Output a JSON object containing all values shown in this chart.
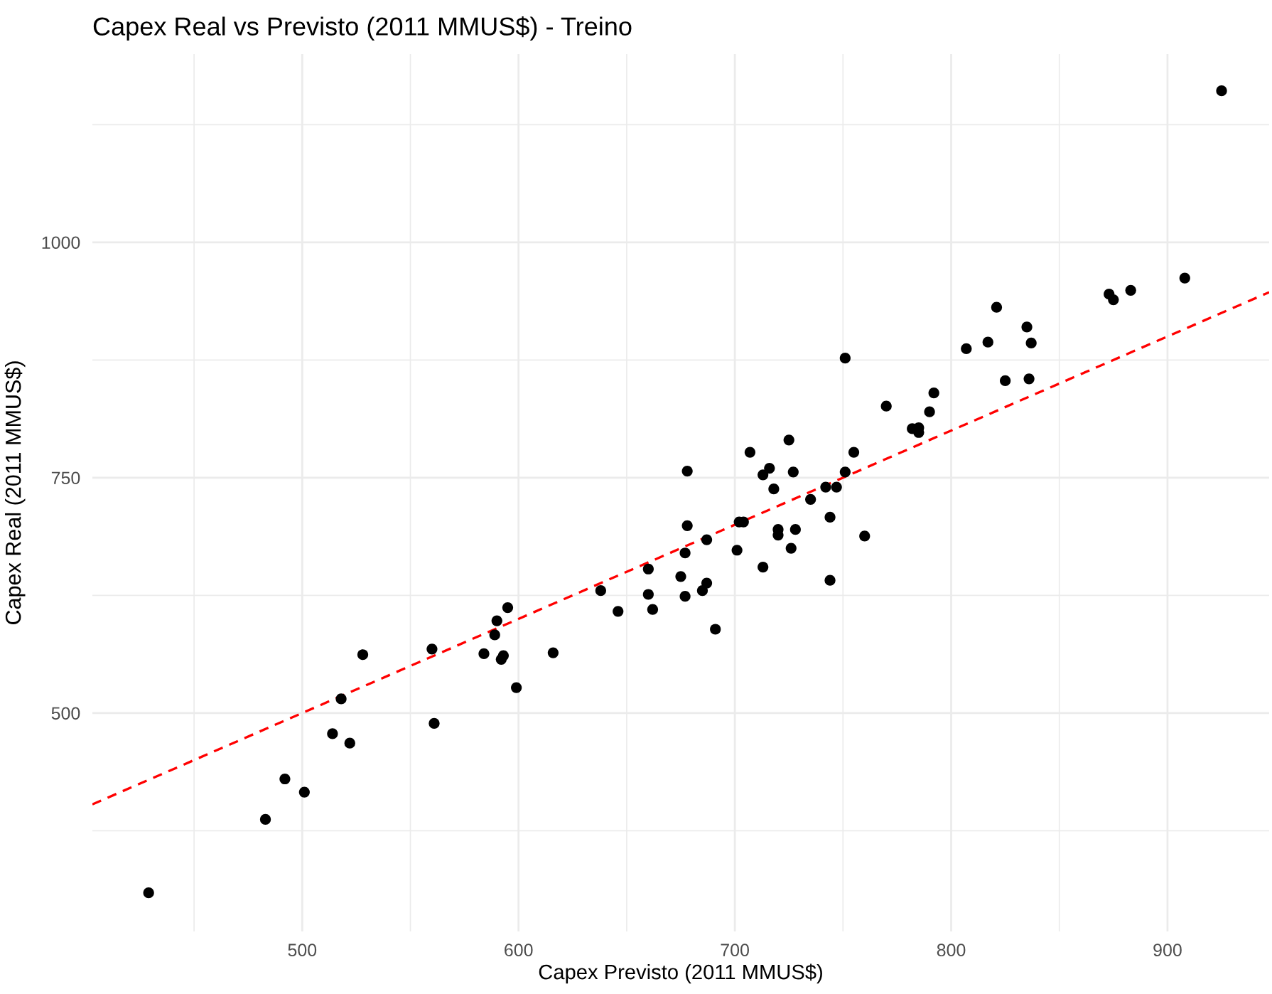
{
  "chart_data": {
    "type": "scatter",
    "title": "Capex Real vs Previsto (2011 MMUS$) - Treino",
    "xlabel": "Capex Previsto (2011 MMUS$)",
    "ylabel": "Capex Real (2011 MMUS$)",
    "xlim": [
      403,
      947
    ],
    "ylim": [
      268,
      1200
    ],
    "xticks": [
      {
        "value": 450,
        "label": null
      },
      500,
      {
        "value": 550,
        "label": null
      },
      600,
      {
        "value": 650,
        "label": null
      },
      700,
      {
        "value": 750,
        "label": null
      },
      800,
      {
        "value": 850,
        "label": null
      },
      900
    ],
    "yticks": [
      {
        "value": 375,
        "label": null
      },
      500,
      {
        "value": 625,
        "label": null
      },
      750,
      {
        "value": 875,
        "label": null
      },
      1000,
      {
        "value": 1125,
        "label": null
      }
    ],
    "grid": true,
    "series": [
      {
        "color": "#000000",
        "marker": "circle",
        "x": [
          429,
          483,
          492,
          501,
          514,
          522,
          518,
          528,
          560,
          561,
          584,
          589,
          590,
          595,
          592,
          593,
          599,
          616,
          638,
          646,
          660,
          660,
          662,
          678,
          678,
          677,
          675,
          677,
          687,
          687,
          685,
          691,
          701,
          702,
          704,
          707,
          713,
          716,
          718,
          720,
          720,
          713,
          725,
          727,
          728,
          726,
          735,
          742,
          747,
          744,
          744,
          751,
          755,
          760,
          751,
          770,
          790,
          792,
          782,
          785,
          785,
          807,
          817,
          821,
          835,
          837,
          825,
          836,
          873,
          875,
          883,
          908,
          925
        ],
        "values": [
          309,
          387,
          430,
          416,
          478,
          468,
          515,
          562,
          568,
          489,
          563,
          583,
          598,
          612,
          557,
          561,
          527,
          564,
          630,
          608,
          653,
          626,
          610,
          757,
          699,
          670,
          645,
          624,
          684,
          638,
          630,
          589,
          673,
          703,
          703,
          777,
          753,
          760,
          738,
          695,
          689,
          655,
          790,
          756,
          695,
          675,
          727,
          740,
          740,
          708,
          641,
          756,
          777,
          688,
          877,
          826,
          820,
          840,
          802,
          803,
          798,
          887,
          894,
          931,
          910,
          893,
          853,
          855,
          945,
          939,
          949,
          962,
          1161
        ]
      },
      {
        "type": "line",
        "color": "#ff0000",
        "line_style": "dashed",
        "marker": "none",
        "x": [
          403,
          947
        ],
        "values": [
          403,
          947
        ]
      }
    ]
  }
}
